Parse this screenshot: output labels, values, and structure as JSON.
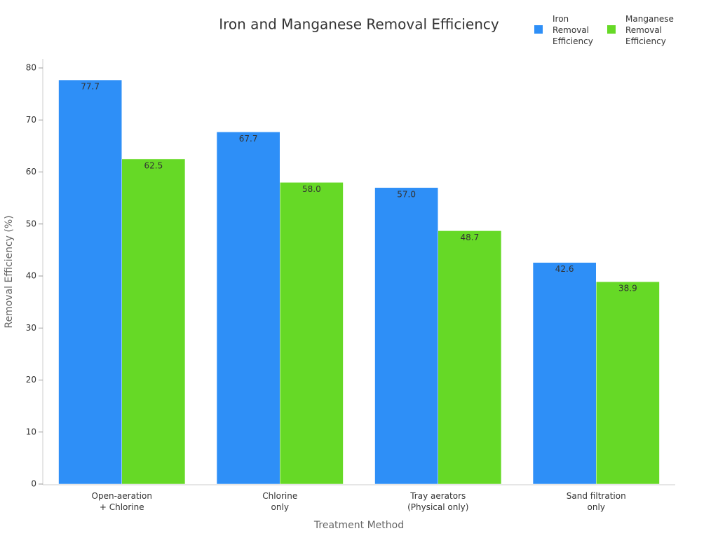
{
  "chart_data": {
    "type": "bar",
    "title": "Iron and Manganese Removal Efficiency",
    "x_label": "Treatment Method",
    "y_label": "Removal Efficiency (%)",
    "categories": [
      "Open-aeration\n+ Chlorine",
      "Chlorine\nonly",
      "Tray aerators\n(Physical only)",
      "Sand filtration\nonly"
    ],
    "series": [
      {
        "name": "Iron Removal Efficiency",
        "color": "#2e8ff7",
        "values": [
          77.7,
          67.7,
          57.0,
          42.6
        ],
        "value_labels": [
          "77.7",
          "67.7",
          "57.0",
          "42.6"
        ]
      },
      {
        "name": "Manganese Removal Efficiency",
        "color": "#66d926",
        "values": [
          62.5,
          58.0,
          48.7,
          38.9
        ],
        "value_labels": [
          "62.5",
          "58.0",
          "48.7",
          "38.9"
        ]
      }
    ],
    "ylim": [
      0,
      80
    ],
    "yticks": [
      0,
      10,
      20,
      30,
      40,
      50,
      60,
      70,
      80
    ],
    "grid": false,
    "legend": "top-right"
  }
}
